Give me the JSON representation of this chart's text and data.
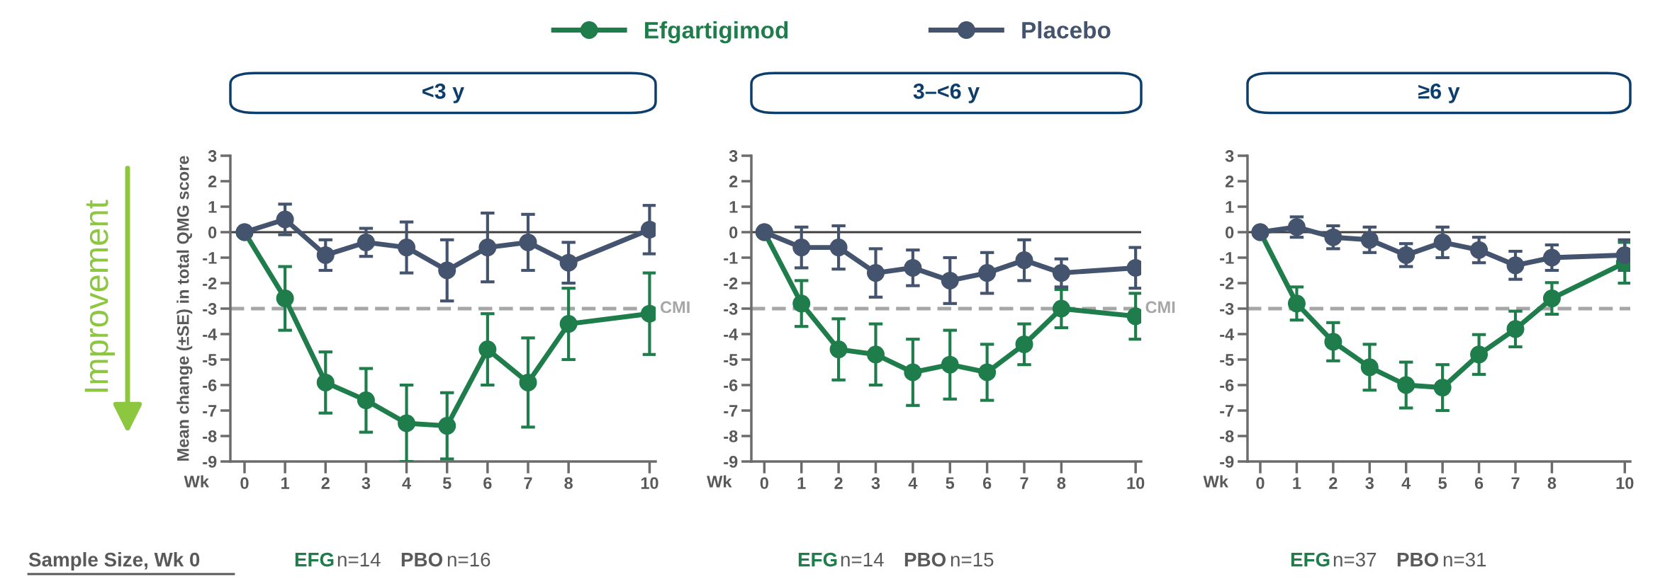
{
  "chart_data": [
    {
      "type": "line",
      "title": "<3 y",
      "xlabel": "Wk",
      "ylabel": "Mean change (±SE) in total QMG score",
      "marker": "circle",
      "line_style": "solid",
      "legend": "top",
      "annotations": [
        "Improvement",
        "Sample Size, Wk 0",
        "EFG",
        "n=14",
        "PBO",
        "n=16"
      ],
      "x": [
        0,
        1,
        2,
        3,
        4,
        5,
        6,
        7,
        8,
        10
      ],
      "xlim": [
        -0.35,
        10.15
      ],
      "xticks": [
        0,
        1,
        2,
        3,
        4,
        5,
        6,
        7,
        8,
        10
      ],
      "ylim": [
        -9,
        3
      ],
      "yticks": [
        -9,
        -8,
        -7,
        -6,
        -5,
        -4,
        -3,
        -2,
        -1,
        0,
        1,
        2,
        3
      ],
      "ref_lines": [
        {
          "axis": "y",
          "value": 0,
          "color": "#404040",
          "line_style": "solid"
        },
        {
          "axis": "y",
          "value": -3,
          "label": "CMI",
          "color": "#a6a6a6",
          "line_style": "dashed"
        }
      ],
      "series": [
        {
          "name": "Efgartigimod",
          "color": "#1e7d4a",
          "values": [
            0,
            -2.6,
            -5.9,
            -6.6,
            -7.5,
            -7.6,
            -4.6,
            -5.9,
            -3.6,
            -3.2
          ],
          "errors": [
            null,
            1.25,
            1.2,
            1.25,
            1.5,
            1.3,
            1.4,
            1.75,
            1.4,
            1.6
          ]
        },
        {
          "name": "Placebo",
          "color": "#45546e",
          "values": [
            0,
            0.5,
            -0.9,
            -0.4,
            -0.6,
            -1.5,
            -0.6,
            -0.4,
            -1.2,
            0.1
          ],
          "errors": [
            null,
            0.6,
            0.6,
            0.55,
            1.0,
            1.2,
            1.35,
            1.1,
            0.8,
            0.95
          ]
        }
      ]
    },
    {
      "type": "line",
      "title": "3–<6 y",
      "xlabel": "Wk",
      "marker": "circle",
      "line_style": "solid",
      "annotations": [
        "EFG",
        "n=14",
        "PBO",
        "n=15"
      ],
      "x": [
        0,
        1,
        2,
        3,
        4,
        5,
        6,
        7,
        8,
        10
      ],
      "xlim": [
        -0.35,
        10.15
      ],
      "xticks": [
        0,
        1,
        2,
        3,
        4,
        5,
        6,
        7,
        8,
        10
      ],
      "ylim": [
        -9,
        3
      ],
      "yticks": [
        -9,
        -8,
        -7,
        -6,
        -5,
        -4,
        -3,
        -2,
        -1,
        0,
        1,
        2,
        3
      ],
      "ref_lines": [
        {
          "axis": "y",
          "value": 0,
          "color": "#404040",
          "line_style": "solid"
        },
        {
          "axis": "y",
          "value": -3,
          "label": "CMI",
          "color": "#a6a6a6",
          "line_style": "dashed"
        }
      ],
      "series": [
        {
          "color": "#1e7d4a",
          "values": [
            0,
            -2.8,
            -4.6,
            -4.8,
            -5.5,
            -5.2,
            -5.5,
            -4.4,
            -3.0,
            -3.3
          ],
          "errors": [
            null,
            0.9,
            1.2,
            1.2,
            1.3,
            1.35,
            1.1,
            0.8,
            0.75,
            0.9
          ]
        },
        {
          "color": "#45546e",
          "values": [
            0,
            -0.6,
            -0.6,
            -1.6,
            -1.4,
            -1.9,
            -1.6,
            -1.1,
            -1.6,
            -1.4
          ],
          "errors": [
            null,
            0.8,
            0.85,
            0.95,
            0.7,
            0.9,
            0.8,
            0.8,
            0.55,
            0.8
          ]
        }
      ]
    },
    {
      "type": "line",
      "title": "≥6 y",
      "xlabel": "Wk",
      "marker": "circle",
      "line_style": "solid",
      "annotations": [
        "EFG",
        "n=37",
        "PBO",
        "n=31"
      ],
      "x": [
        0,
        1,
        2,
        3,
        4,
        5,
        6,
        7,
        8,
        10
      ],
      "xlim": [
        -0.35,
        10.15
      ],
      "xticks": [
        0,
        1,
        2,
        3,
        4,
        5,
        6,
        7,
        8,
        10
      ],
      "ylim": [
        -9,
        3
      ],
      "yticks": [
        -9,
        -8,
        -7,
        -6,
        -5,
        -4,
        -3,
        -2,
        -1,
        0,
        1,
        2,
        3
      ],
      "ref_lines": [
        {
          "axis": "y",
          "value": 0,
          "color": "#404040",
          "line_style": "solid"
        },
        {
          "axis": "y",
          "value": -3,
          "color": "#a6a6a6",
          "line_style": "dashed"
        }
      ],
      "series": [
        {
          "color": "#1e7d4a",
          "values": [
            0,
            -2.8,
            -4.3,
            -5.3,
            -6.0,
            -6.1,
            -4.8,
            -3.8,
            -2.6,
            -1.2
          ],
          "errors": [
            null,
            0.65,
            0.75,
            0.9,
            0.9,
            0.9,
            0.78,
            0.7,
            0.62,
            0.8
          ]
        },
        {
          "color": "#45546e",
          "values": [
            0,
            0.2,
            -0.2,
            -0.3,
            -0.9,
            -0.4,
            -0.7,
            -1.3,
            -1.0,
            -0.9
          ],
          "errors": [
            null,
            0.4,
            0.45,
            0.5,
            0.45,
            0.6,
            0.5,
            0.55,
            0.5,
            0.6
          ]
        }
      ]
    }
  ]
}
